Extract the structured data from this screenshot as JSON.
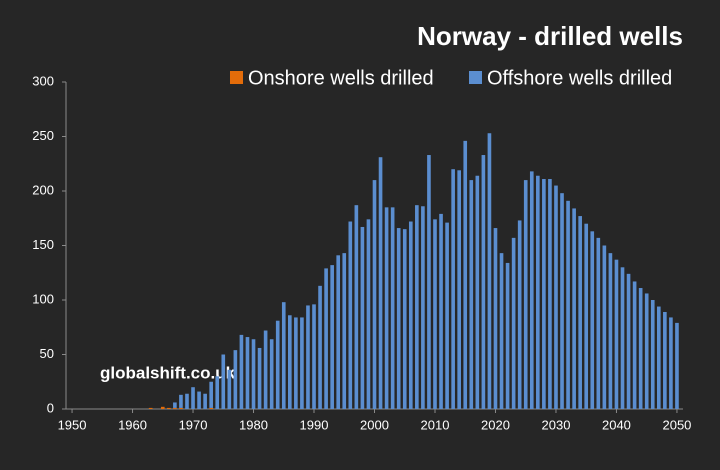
{
  "chart_data": {
    "type": "stacked-bar",
    "title": "Norway - drilled wells",
    "annotation": "globalshift.co.uk",
    "x": [
      1962,
      1963,
      1964,
      1965,
      1966,
      1967,
      1968,
      1969,
      1970,
      1971,
      1972,
      1973,
      1974,
      1975,
      1976,
      1977,
      1978,
      1979,
      1980,
      1981,
      1982,
      1983,
      1984,
      1985,
      1986,
      1987,
      1988,
      1989,
      1990,
      1991,
      1992,
      1993,
      1994,
      1995,
      1996,
      1997,
      1998,
      1999,
      2000,
      2001,
      2002,
      2003,
      2004,
      2005,
      2006,
      2007,
      2008,
      2009,
      2010,
      2011,
      2012,
      2013,
      2014,
      2015,
      2016,
      2017,
      2018,
      2019,
      2020,
      2021,
      2022,
      2023,
      2024,
      2025,
      2026,
      2027,
      2028,
      2029,
      2030,
      2031,
      2032,
      2033,
      2034,
      2035,
      2036,
      2037,
      2038,
      2039,
      2040,
      2041,
      2042,
      2043,
      2044,
      2045,
      2046,
      2047,
      2048,
      2049,
      2050
    ],
    "series": [
      {
        "name": "Onshore wells drilled",
        "color": "#e36c0a",
        "values": [
          0,
          1,
          0,
          2,
          1,
          1,
          1,
          0,
          0,
          0,
          0,
          1,
          0,
          0,
          0,
          0,
          0,
          0,
          0,
          0,
          0,
          0,
          0,
          0,
          0,
          0,
          0,
          0,
          0,
          0,
          0,
          0,
          0,
          0,
          0,
          0,
          0,
          0,
          0,
          0,
          0,
          0,
          0,
          0,
          0,
          0,
          0,
          0,
          0,
          0,
          0,
          0,
          0,
          0,
          0,
          0,
          0,
          0,
          0,
          0,
          0,
          0,
          0,
          0,
          0,
          0,
          0,
          0,
          0,
          0,
          0,
          0,
          0,
          0,
          0,
          0,
          0,
          0,
          0,
          0,
          0,
          0,
          0,
          0,
          0,
          0,
          0,
          0,
          0
        ]
      },
      {
        "name": "Offshore wells drilled",
        "color": "#5b8ed0",
        "values": [
          0,
          0,
          0,
          0,
          0,
          5,
          12,
          14,
          20,
          16,
          14,
          24,
          30,
          50,
          36,
          54,
          68,
          66,
          64,
          56,
          72,
          64,
          81,
          98,
          86,
          84,
          84,
          95,
          96,
          113,
          129,
          132,
          141,
          143,
          172,
          187,
          167,
          174,
          210,
          231,
          185,
          185,
          166,
          165,
          172,
          187,
          186,
          233,
          174,
          179,
          171,
          220,
          219,
          246,
          210,
          214,
          233,
          253,
          166,
          143,
          134,
          157,
          173,
          210,
          218,
          214,
          211,
          211,
          205,
          198,
          191,
          184,
          177,
          170,
          163,
          157,
          150,
          143,
          137,
          130,
          124,
          117,
          111,
          106,
          100,
          94,
          89,
          84,
          79
        ]
      }
    ],
    "xlim": [
      1949,
      2051
    ],
    "xticks": [
      1950,
      1960,
      1970,
      1980,
      1990,
      2000,
      2010,
      2020,
      2030,
      2040,
      2050
    ],
    "ylim": [
      0,
      300
    ],
    "yticks": [
      0,
      50,
      100,
      150,
      200,
      250,
      300
    ],
    "legend": "top-right"
  }
}
